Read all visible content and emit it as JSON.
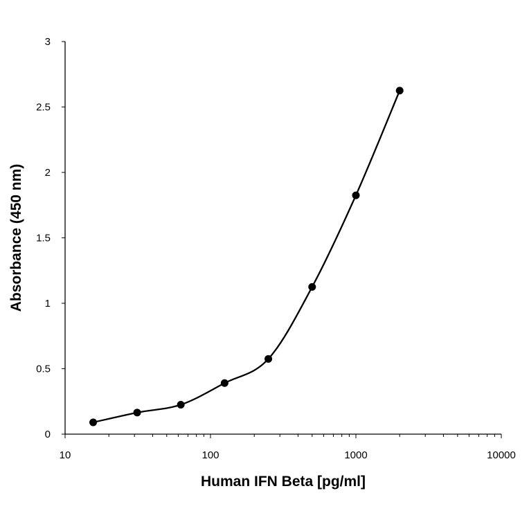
{
  "chart_data": {
    "type": "scatter",
    "xlabel": "Human IFN Beta [pg/ml]",
    "ylabel": "Absorbance (450 nm)",
    "x_scale": "log",
    "xlim": [
      10,
      10000
    ],
    "ylim": [
      0,
      3
    ],
    "x_ticks": [
      10,
      100,
      1000,
      10000
    ],
    "x_tick_labels": [
      "10",
      "100",
      "1000",
      "10000"
    ],
    "y_ticks": [
      0,
      0.5,
      1,
      1.5,
      2,
      2.5,
      3
    ],
    "y_tick_labels": [
      "0",
      "0.5",
      "1",
      "1.5",
      "2",
      "2.5",
      "3"
    ],
    "grid": false,
    "legend": "none",
    "series": [
      {
        "color": "#000000",
        "marker": "filled-circle",
        "line": "smooth",
        "x": [
          15.6,
          31.3,
          62.5,
          125,
          250,
          500,
          1000,
          2000
        ],
        "y": [
          0.09,
          0.165,
          0.225,
          0.39,
          0.575,
          1.125,
          1.825,
          2.625
        ]
      }
    ]
  }
}
